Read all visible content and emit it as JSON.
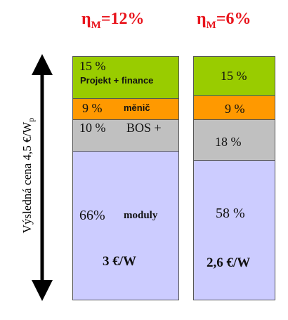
{
  "axis_label": {
    "text": "Výsledná cena 4,5  €/W",
    "subscript": "p"
  },
  "columns": [
    {
      "header": {
        "symbol": "η",
        "subscript": "M",
        "value": "=12%"
      },
      "segments": [
        {
          "percent": "15 %",
          "label": "Projekt + finance"
        },
        {
          "percent": "9 %",
          "label": "měnič"
        },
        {
          "percent": "10 %",
          "label": "BOS +"
        },
        {
          "percent": "66%",
          "label": "moduly",
          "price": "3 €/W"
        }
      ]
    },
    {
      "header": {
        "symbol": "η",
        "subscript": "M",
        "value": "=6%"
      },
      "segments": [
        {
          "percent": "15 %"
        },
        {
          "percent": "9 %"
        },
        {
          "percent": "18 %"
        },
        {
          "percent": "58 %",
          "price": "2,6 €/W"
        }
      ]
    }
  ]
}
